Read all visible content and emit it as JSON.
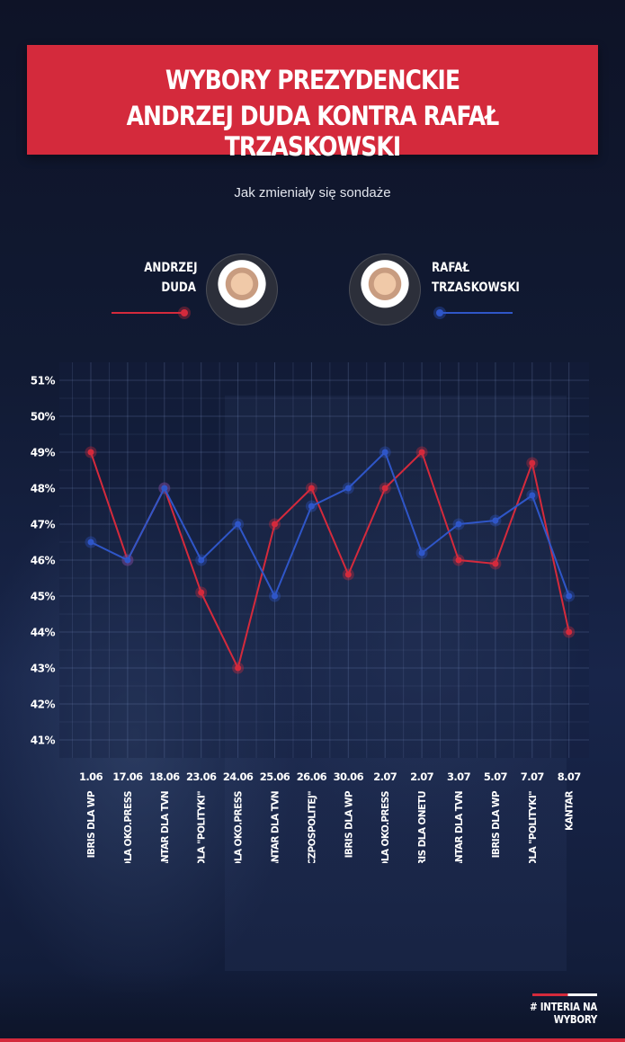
{
  "header": {
    "title_line1": "WYBORY PREZYDENCKIE",
    "title_line2": "ANDRZEJ DUDA KONTRA RAFAŁ TRZASKOWSKI",
    "subtitle": "Jak zmieniały się sondaże"
  },
  "candidates": {
    "duda": {
      "first": "ANDRZEJ",
      "last": "DUDA",
      "color": "#d42a3c"
    },
    "trzaskowski": {
      "first": "RAFAŁ",
      "last": "TRZASKOWSKI",
      "color": "#2f56c8"
    }
  },
  "footer": {
    "tag": "# INTERIA NA WYBORY"
  },
  "chart_data": {
    "type": "line",
    "ylim": [
      41,
      51
    ],
    "y_ticks": [
      "41%",
      "42%",
      "43%",
      "44%",
      "45%",
      "46%",
      "47%",
      "48%",
      "49%",
      "50%",
      "51%"
    ],
    "grid": true,
    "categories": [
      {
        "date": "1.06",
        "poll": "IBRIS DLA WP"
      },
      {
        "date": "17.06",
        "poll": "IPSOS DLA OKO.PRESS"
      },
      {
        "date": "18.06",
        "poll": "KANTAR DLA TVN"
      },
      {
        "date": "23.06",
        "poll": "IBRIS DLA \"POLITYKI\""
      },
      {
        "date": "24.06",
        "poll": "IPSOS DLA OKO.PRESS"
      },
      {
        "date": "25.06",
        "poll": "KANTAR DLA TVN"
      },
      {
        "date": "26.06",
        "poll": "IBRIS DLA \"RZECZPOSPOLITEJ\""
      },
      {
        "date": "30.06",
        "poll": "IBRIS DLA WP"
      },
      {
        "date": "2.07",
        "poll": "IPSOS DLA OKO.PRESS"
      },
      {
        "date": "2.07",
        "poll": "IBRIS DLA ONETU"
      },
      {
        "date": "3.07",
        "poll": "KANTAR DLA TVN"
      },
      {
        "date": "5.07",
        "poll": "IBRIS DLA WP"
      },
      {
        "date": "7.07",
        "poll": "IBRIS DLA \"POLITYKI\""
      },
      {
        "date": "8.07",
        "poll": "KANTAR"
      }
    ],
    "series": [
      {
        "name": "ANDRZEJ DUDA",
        "color": "#d42a3c",
        "values": [
          49,
          46,
          48,
          45.1,
          43,
          47,
          48,
          45.6,
          48,
          49,
          46,
          45.9,
          48.7,
          44
        ]
      },
      {
        "name": "RAFAŁ TRZASKOWSKI",
        "color": "#2f56c8",
        "values": [
          46.5,
          46,
          48,
          46,
          47,
          45,
          47.5,
          48,
          49,
          46.2,
          47,
          47.1,
          47.8,
          45
        ]
      }
    ]
  }
}
